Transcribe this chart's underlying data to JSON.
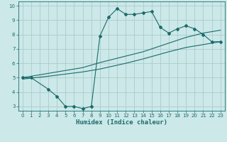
{
  "xlabel": "Humidex (Indice chaleur)",
  "bg_color": "#cce8e8",
  "grid_color": "#aacccc",
  "line_color": "#1a6b6b",
  "spine_color": "#1a6b6b",
  "xlim": [
    -0.5,
    23.5
  ],
  "ylim": [
    2.7,
    10.3
  ],
  "xticks": [
    0,
    1,
    2,
    3,
    4,
    5,
    6,
    7,
    8,
    9,
    10,
    11,
    12,
    13,
    14,
    15,
    16,
    17,
    18,
    19,
    20,
    21,
    22,
    23
  ],
  "yticks": [
    3,
    4,
    5,
    6,
    7,
    8,
    9,
    10
  ],
  "line1_x": [
    0,
    1,
    3,
    4,
    5,
    6,
    7,
    8,
    9,
    10,
    11,
    12,
    13,
    14,
    15,
    16,
    17,
    18,
    19,
    20,
    21,
    22,
    23
  ],
  "line1_y": [
    5.0,
    5.0,
    4.2,
    3.7,
    3.0,
    3.0,
    2.85,
    3.0,
    7.9,
    9.2,
    9.8,
    9.4,
    9.4,
    9.5,
    9.6,
    8.5,
    8.1,
    8.4,
    8.6,
    8.4,
    8.0,
    7.5,
    7.5
  ],
  "line2_x": [
    0,
    3,
    7,
    9,
    12,
    14,
    17,
    19,
    21,
    23
  ],
  "line2_y": [
    5.0,
    5.3,
    5.7,
    6.05,
    6.5,
    6.8,
    7.4,
    7.8,
    8.1,
    8.3
  ],
  "line3_x": [
    0,
    3,
    7,
    9,
    12,
    14,
    17,
    19,
    21,
    23
  ],
  "line3_y": [
    4.9,
    5.1,
    5.4,
    5.6,
    6.0,
    6.3,
    6.8,
    7.1,
    7.3,
    7.5
  ],
  "marker_size": 2.0,
  "line_width": 0.8,
  "tick_fontsize": 5.0,
  "xlabel_fontsize": 6.5
}
